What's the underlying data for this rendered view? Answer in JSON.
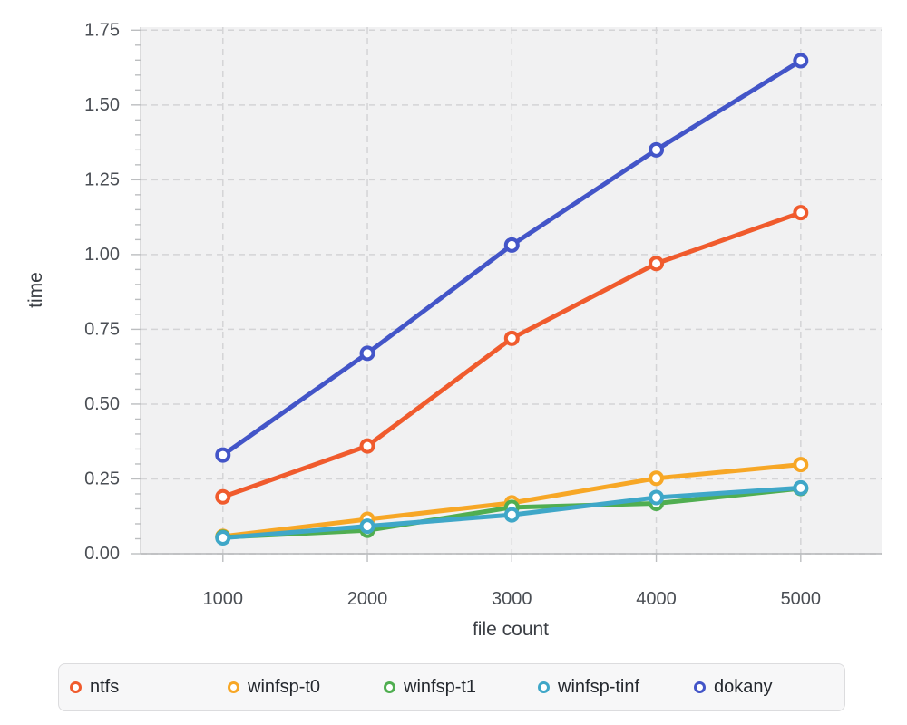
{
  "page": {
    "background": "#ffffff"
  },
  "chart_data": {
    "type": "line",
    "xlabel": "file count",
    "ylabel": "time",
    "x": [
      1000,
      2000,
      3000,
      4000,
      5000
    ],
    "series": [
      {
        "name": "ntfs",
        "color": "#f05b2d",
        "values": [
          0.19,
          0.36,
          0.72,
          0.97,
          1.14
        ]
      },
      {
        "name": "winfsp-t0",
        "color": "#f7a726",
        "values": [
          0.058,
          0.115,
          0.17,
          0.252,
          0.298
        ]
      },
      {
        "name": "winfsp-t1",
        "color": "#50ae51",
        "values": [
          0.055,
          0.078,
          0.155,
          0.168,
          0.218
        ]
      },
      {
        "name": "winfsp-tinf",
        "color": "#3fa7c8",
        "values": [
          0.053,
          0.092,
          0.13,
          0.188,
          0.22
        ]
      },
      {
        "name": "dokany",
        "color": "#4355c8",
        "values": [
          0.33,
          0.67,
          1.032,
          1.35,
          1.648
        ]
      }
    ],
    "xticks": [
      "1000",
      "2000",
      "3000",
      "4000",
      "5000"
    ],
    "xtick_values": [
      1000,
      2000,
      3000,
      4000,
      5000
    ],
    "yticks": [
      "0.00",
      "0.25",
      "0.50",
      "0.75",
      "1.00",
      "1.25",
      "1.50",
      "1.75"
    ],
    "y_minor_step": 0.05,
    "xlim": [
      430,
      5560
    ],
    "ylim": [
      0,
      1.76
    ],
    "grid": true,
    "legend_position": "bottom",
    "marker": "open-circle",
    "colors": {
      "plot_bg": "#f1f1f2",
      "grid": "#d4d4d6",
      "spine_left": "#cfcfd1",
      "spine_bottom": "#b4b6b8",
      "tick": "#bcbec0",
      "tick_label": "#4a4e54",
      "axis_label": "#3a3e44",
      "legend_text": "#24282e",
      "legend_bg": "#f7f7f8",
      "legend_border": "#dcdcde"
    }
  }
}
